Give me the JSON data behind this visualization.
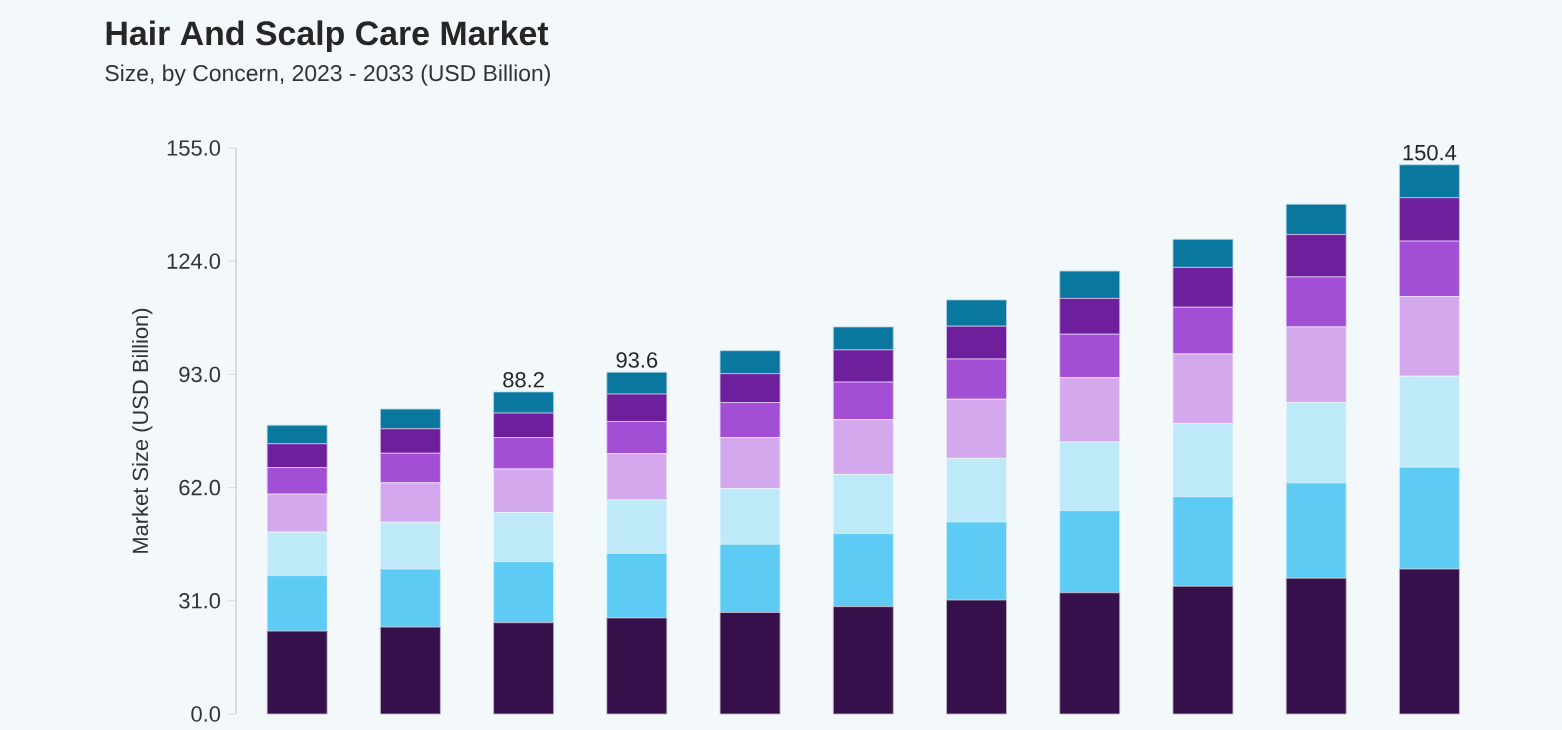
{
  "chart_data": {
    "type": "bar",
    "stacked": true,
    "title": "Hair And Scalp Care Market",
    "subtitle": "Size, by Concern, 2023 - 2033 (USD Billion)",
    "ylabel": "Market Size (USD Billion)",
    "categories": [
      null,
      null,
      null,
      null,
      null,
      null,
      null,
      null,
      null,
      null,
      null
    ],
    "ylim": [
      0,
      155
    ],
    "yticks": [
      {
        "value": 0,
        "label": "0.0"
      },
      {
        "value": 31,
        "label": "31.0"
      },
      {
        "value": 62,
        "label": "62.0"
      },
      {
        "value": 93,
        "label": "93.0"
      },
      {
        "value": 124,
        "label": "124.0"
      },
      {
        "value": 155,
        "label": "155.0"
      }
    ],
    "series": [
      {
        "color": "#35104a",
        "values": [
          22.7,
          23.8,
          25.0,
          26.3,
          27.8,
          29.4,
          31.2,
          33.2,
          35.0,
          37.2,
          39.7
        ]
      },
      {
        "color": "#5ecbf5",
        "values": [
          15.2,
          15.9,
          16.7,
          17.7,
          18.7,
          20.0,
          21.4,
          22.5,
          24.5,
          26.1,
          27.9
        ]
      },
      {
        "color": "#bde9f8",
        "values": [
          11.9,
          12.8,
          13.5,
          14.6,
          15.2,
          16.2,
          17.4,
          18.8,
          20.0,
          22.0,
          24.9
        ]
      },
      {
        "color": "#d3a8ec",
        "values": [
          10.4,
          10.8,
          11.9,
          12.7,
          14.0,
          15.0,
          16.2,
          17.6,
          19.1,
          20.7,
          21.8
        ]
      },
      {
        "color": "#a24fd6",
        "values": [
          7.3,
          8.1,
          8.6,
          8.8,
          9.6,
          10.3,
          11.0,
          11.9,
          12.8,
          13.7,
          15.2
        ]
      },
      {
        "color": "#6e1f9b",
        "values": [
          6.5,
          6.7,
          6.7,
          7.5,
          7.9,
          8.8,
          9.0,
          9.8,
          10.9,
          11.6,
          11.9
        ]
      },
      {
        "color": "#0a779e",
        "values": [
          5.1,
          5.4,
          5.8,
          6.0,
          6.3,
          6.3,
          7.2,
          7.5,
          7.7,
          8.3,
          9.0
        ]
      }
    ],
    "totals": [
      null,
      null,
      "88.2",
      "93.6",
      null,
      null,
      null,
      null,
      null,
      null,
      "150.4"
    ],
    "grid": false
  }
}
